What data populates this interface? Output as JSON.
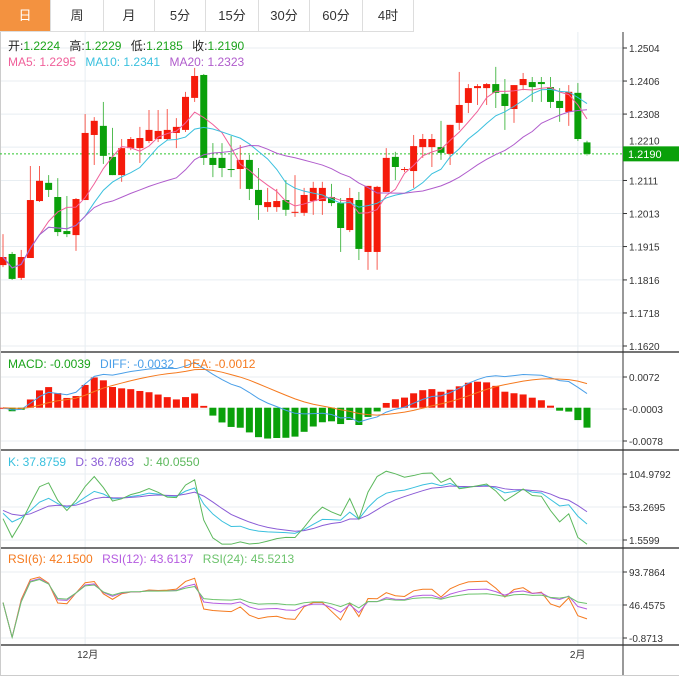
{
  "tabs": [
    {
      "label": "日",
      "active": true
    },
    {
      "label": "周"
    },
    {
      "label": "月"
    },
    {
      "label": "5分"
    },
    {
      "label": "15分"
    },
    {
      "label": "30分"
    },
    {
      "label": "60分"
    },
    {
      "label": "4时"
    }
  ],
  "header": {
    "open_label": "开:",
    "open": "1.2224",
    "high_label": "高:",
    "high": "1.2229",
    "low_label": "低:",
    "low": "1.2185",
    "close_label": "收:",
    "close": "1.2190",
    "ma5": "MA5: 1.2295",
    "ma10": "MA10: 1.2341",
    "ma20": "MA20: 1.2323"
  },
  "macd_header": {
    "macd": "MACD: -0.0039",
    "diff": "DIFF: -0.0032",
    "dea": "DEA: -0.0012"
  },
  "kdj_header": {
    "k": "K: 37.8759",
    "d": "D: 36.7863",
    "j": "J: 40.0550"
  },
  "rsi_header": {
    "rsi6": "RSI(6): 42.1500",
    "rsi12": "RSI(12): 43.6137",
    "rsi24": "RSI(24): 45.5213"
  },
  "current_price": "1.2190",
  "colors": {
    "up": "#f51b0b",
    "down": "#0aa00a",
    "ma5": "#f0609a",
    "ma10": "#3ac0de",
    "ma20": "#b05ccc",
    "diff": "#4a9fe8",
    "dea": "#f57a1f",
    "k": "#3ac0de",
    "d": "#8b5cd6",
    "j": "#5cb85c",
    "rsi6": "#f57a1f",
    "rsi12": "#b55ce0",
    "rsi24": "#6cc36c",
    "accent": "#f39240"
  },
  "chart_data": {
    "type": "candlestick",
    "x_labels": [
      {
        "index": 9,
        "label": "12月"
      },
      {
        "index": 63,
        "label": "2月"
      }
    ],
    "price_axis": {
      "ticks": [
        "1.2504",
        "1.2406",
        "1.2308",
        "1.2210",
        "1.2111",
        "1.2013",
        "1.1915",
        "1.1816",
        "1.1718",
        "1.1620"
      ],
      "range": [
        1.162,
        1.2504
      ]
    },
    "macd_axis": {
      "ticks": [
        "0.0072",
        "-0.0003",
        "-0.0078"
      ],
      "range": [
        -0.0078,
        0.0072
      ]
    },
    "kdj_axis": {
      "ticks": [
        "104.9792",
        "53.2695",
        "1.5599"
      ],
      "range": [
        1.5599,
        104.9792
      ]
    },
    "rsi_axis": {
      "ticks": [
        "93.7864",
        "46.4575",
        "-0.8713"
      ],
      "range": [
        -0.8713,
        93.7864
      ]
    },
    "candles_ohlc": [
      [
        1.186,
        1.1884,
        1.1952,
        1.1854
      ],
      [
        1.1893,
        1.1819,
        1.1899,
        1.1816
      ],
      [
        1.1822,
        1.1884,
        1.1905,
        1.1816
      ],
      [
        1.1881,
        1.2053,
        1.2154,
        1.1881
      ],
      [
        1.205,
        1.211,
        1.2154,
        1.2047
      ],
      [
        1.2104,
        1.2083,
        1.2127,
        1.2062
      ],
      [
        1.2062,
        1.1958,
        1.2118,
        1.1946
      ],
      [
        1.1961,
        1.1952,
        1.2065,
        1.1943
      ],
      [
        1.1949,
        1.2056,
        1.2059,
        1.1902
      ],
      [
        1.2053,
        1.2252,
        1.2308,
        1.2053
      ],
      [
        1.2246,
        1.2288,
        1.2299,
        1.2157
      ],
      [
        1.2273,
        1.2184,
        1.2344,
        1.216
      ],
      [
        1.2181,
        1.2127,
        1.2267,
        1.2127
      ],
      [
        1.2127,
        1.2207,
        1.2234,
        1.2107
      ],
      [
        1.2207,
        1.2234,
        1.224,
        1.2201
      ],
      [
        1.2207,
        1.2237,
        1.227,
        1.2163
      ],
      [
        1.2228,
        1.2261,
        1.232,
        1.2222
      ],
      [
        1.2234,
        1.2258,
        1.232,
        1.2225
      ],
      [
        1.2234,
        1.2261,
        1.2323,
        1.2231
      ],
      [
        1.2252,
        1.227,
        1.2296,
        1.2207
      ],
      [
        1.2261,
        1.2359,
        1.2374,
        1.2255
      ],
      [
        1.2356,
        1.2421,
        1.2445,
        1.2344
      ],
      [
        1.2424,
        1.2178,
        1.2427,
        1.2157
      ],
      [
        1.2178,
        1.2157,
        1.2222,
        1.2121
      ],
      [
        1.2178,
        1.2148,
        1.2222,
        1.2121
      ],
      [
        1.2145,
        1.2142,
        1.2243,
        1.2121
      ],
      [
        1.2145,
        1.2172,
        1.2216,
        1.2086
      ],
      [
        1.2172,
        1.2086,
        1.2187,
        1.2053
      ],
      [
        1.2083,
        1.2038,
        1.2148,
        1.1994
      ],
      [
        1.2032,
        1.2047,
        1.2089,
        1.2018
      ],
      [
        1.2032,
        1.205,
        1.2086,
        1.2018
      ],
      [
        1.2053,
        1.2024,
        1.2112,
        1.2006
      ],
      [
        1.2015,
        1.2018,
        1.2127,
        1.2003
      ],
      [
        1.2015,
        1.2068,
        1.2089,
        1.2006
      ],
      [
        1.205,
        1.2089,
        1.2107,
        1.2009
      ],
      [
        1.205,
        1.2089,
        1.2107,
        1.2009
      ],
      [
        1.2062,
        1.2044,
        1.2101,
        1.2035
      ],
      [
        1.2044,
        1.197,
        1.2059,
        1.1899
      ],
      [
        1.1964,
        1.2059,
        1.2089,
        1.1958
      ],
      [
        1.2053,
        1.1908,
        1.2077,
        1.1875
      ],
      [
        1.1899,
        1.2095,
        1.2095,
        1.1846
      ],
      [
        1.1899,
        1.2092,
        1.2095,
        1.1846
      ],
      [
        1.2077,
        1.2178,
        1.2207,
        1.2077
      ],
      [
        1.2181,
        1.2151,
        1.2196,
        1.2112
      ],
      [
        1.2142,
        1.2145,
        1.2151,
        1.2136
      ],
      [
        1.2139,
        1.2213,
        1.2246,
        1.2089
      ],
      [
        1.221,
        1.2234,
        1.2249,
        1.2178
      ],
      [
        1.221,
        1.2234,
        1.2249,
        1.2151
      ],
      [
        1.221,
        1.2193,
        1.2288,
        1.2172
      ],
      [
        1.219,
        1.2276,
        1.2276,
        1.2157
      ],
      [
        1.2282,
        1.2335,
        1.2433,
        1.2261
      ],
      [
        1.2341,
        1.2385,
        1.2397,
        1.2311
      ],
      [
        1.2385,
        1.2391,
        1.2397,
        1.2335
      ],
      [
        1.2385,
        1.2397,
        1.24,
        1.2335
      ],
      [
        1.2397,
        1.2371,
        1.2448,
        1.2326
      ],
      [
        1.2368,
        1.2332,
        1.2412,
        1.2261
      ],
      [
        1.2323,
        1.2394,
        1.2394,
        1.2282
      ],
      [
        1.2394,
        1.2412,
        1.243,
        1.2379
      ],
      [
        1.2403,
        1.2388,
        1.2418,
        1.2344
      ],
      [
        1.2403,
        1.2397,
        1.2418,
        1.2344
      ],
      [
        1.2388,
        1.2344,
        1.2418,
        1.2326
      ],
      [
        1.2347,
        1.2326,
        1.2385,
        1.2285
      ],
      [
        1.2314,
        1.2374,
        1.2394,
        1.2273
      ],
      [
        1.2371,
        1.2234,
        1.24,
        1.2228
      ],
      [
        1.2224,
        1.219,
        1.2229,
        1.2185
      ]
    ]
  }
}
